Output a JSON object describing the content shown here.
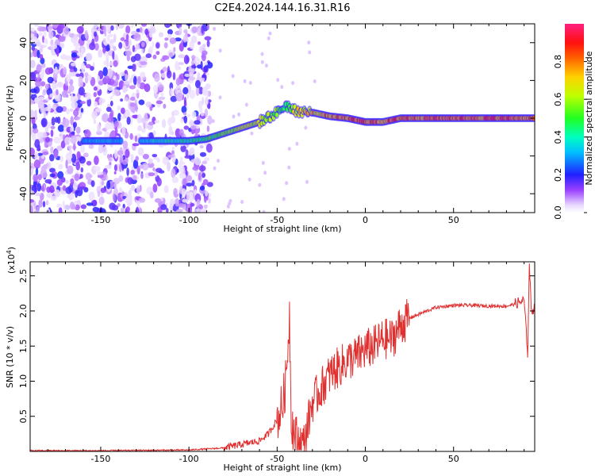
{
  "title": "C2E4.2024.144.16.31.R16",
  "chart_data": [
    {
      "type": "heatmap",
      "xlabel": "Height of straight line (km)",
      "ylabel": "Frequency (Hz)",
      "xlim": [
        -190,
        96
      ],
      "ylim": [
        -50,
        50
      ],
      "x_ticks": [
        -150,
        -100,
        -50,
        0,
        50
      ],
      "x_tick_labels": [
        "-150",
        "-100",
        "-50",
        "0",
        "50"
      ],
      "y_ticks": [
        -40,
        -20,
        0,
        20,
        40
      ],
      "y_tick_labels": [
        "-40",
        "-20",
        "0",
        "20",
        "40"
      ],
      "colorbar": {
        "label": "Normalized spectral amplitude",
        "range": [
          0,
          1
        ],
        "ticks": [
          0.0,
          0.2,
          0.4,
          0.6,
          0.8
        ],
        "tick_labels": [
          "0.0",
          "0.2",
          "0.4",
          "0.6",
          "0.8"
        ]
      },
      "ridge": {
        "description_points_x": [
          -160,
          -150,
          -140,
          -125,
          -100,
          -90,
          -80,
          -70,
          -60,
          -50,
          -45,
          -40,
          -30,
          -20,
          -10,
          0,
          10,
          20,
          40,
          60,
          80,
          96
        ],
        "frequency_y": [
          -12,
          -12,
          -12,
          -12,
          -12,
          -11,
          -8,
          -5,
          -2,
          3,
          7,
          4,
          3,
          1,
          0,
          -2,
          -2,
          0,
          0,
          0,
          0,
          0
        ],
        "amplitude": [
          0.35,
          0.4,
          0.35,
          0.4,
          0.5,
          0.55,
          0.65,
          0.7,
          0.7,
          0.6,
          0.55,
          0.75,
          0.8,
          0.85,
          0.9,
          0.95,
          0.9,
          0.95,
          0.95,
          0.95,
          0.95,
          0.9
        ]
      },
      "noise_region_x": [
        -190,
        -88
      ]
    },
    {
      "type": "line",
      "xlabel": "Height of straight line (km)",
      "ylabel": "SNR (10 * v/v)",
      "y_multiplier_label": "(x10",
      "y_multiplier_exp": "4",
      "y_multiplier_close": ")",
      "xlim": [
        -190,
        96
      ],
      "ylim": [
        0,
        2.7
      ],
      "x_ticks": [
        -150,
        -100,
        -50,
        0,
        50
      ],
      "x_tick_labels": [
        "-150",
        "-100",
        "-50",
        "0",
        "50"
      ],
      "y_ticks": [
        0.5,
        1.0,
        1.5,
        2.0,
        2.5
      ],
      "y_tick_labels": [
        "0.5",
        "1.0",
        "1.5",
        "2.0",
        "2.5"
      ],
      "color": "#e03030",
      "x": [
        -190,
        -150,
        -100,
        -80,
        -70,
        -60,
        -55,
        -50,
        -47,
        -45,
        -43,
        -42,
        -40,
        -35,
        -30,
        -25,
        -20,
        -15,
        -10,
        -5,
        0,
        5,
        10,
        15,
        20,
        25,
        30,
        40,
        50,
        60,
        70,
        80,
        85,
        90,
        92,
        93,
        94,
        96
      ],
      "y": [
        0.01,
        0.01,
        0.02,
        0.05,
        0.1,
        0.15,
        0.25,
        0.45,
        0.65,
        1.0,
        1.95,
        0.5,
        0.2,
        0.1,
        0.7,
        0.9,
        1.1,
        1.2,
        1.3,
        1.35,
        1.45,
        1.5,
        1.6,
        1.6,
        1.8,
        1.9,
        1.95,
        2.05,
        2.08,
        2.08,
        2.07,
        2.07,
        2.1,
        2.15,
        1.4,
        2.7,
        2.0,
        2.05
      ]
    }
  ]
}
